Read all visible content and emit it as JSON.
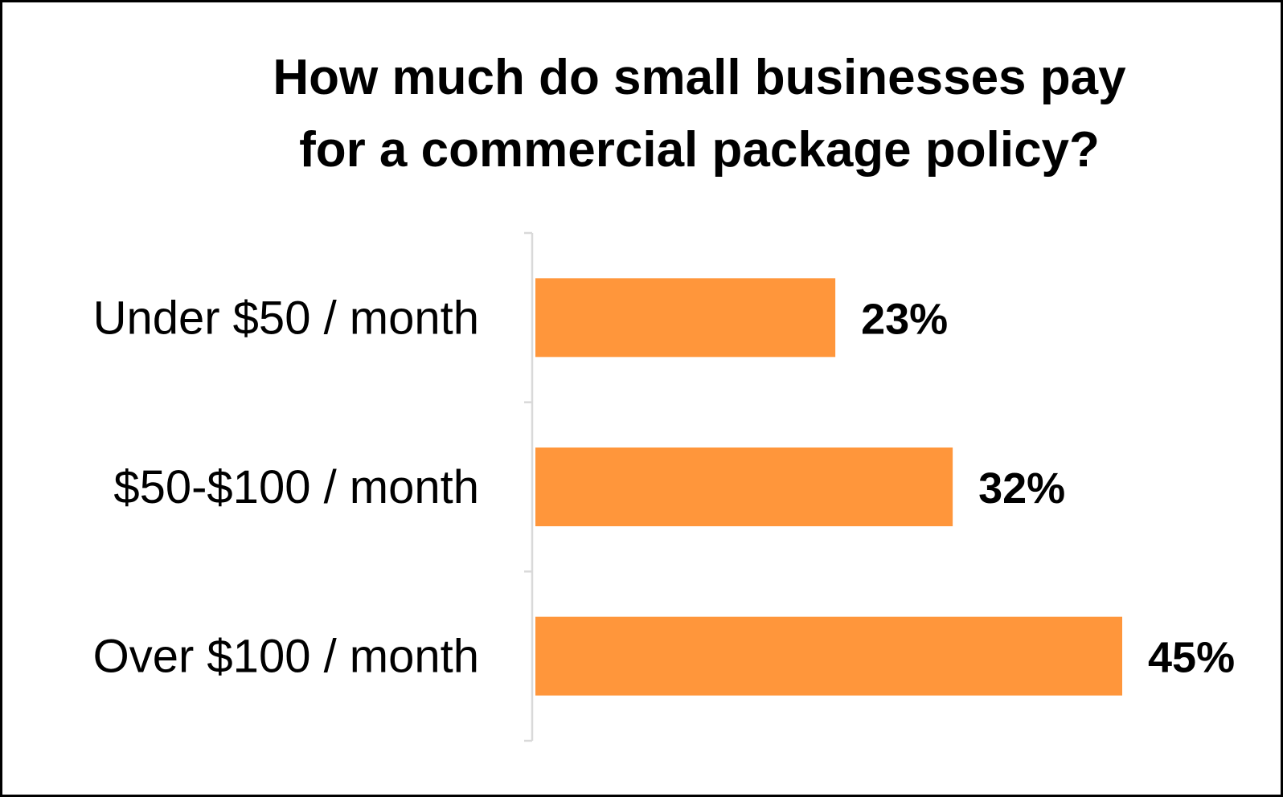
{
  "chart_data": {
    "type": "bar",
    "orientation": "horizontal",
    "title_lines": [
      "How much do small businesses pay",
      "for a commercial package policy?"
    ],
    "categories": [
      "Under $50 / month",
      "$50-$100 / month",
      "Over $100 / month"
    ],
    "values": [
      23,
      32,
      45
    ],
    "value_labels": [
      "23%",
      "32%",
      "45%"
    ],
    "unit": "%",
    "xlabel": "",
    "ylabel": "",
    "xlim": [
      0,
      45
    ],
    "grid": false,
    "legend": "none",
    "bar_color": "#FF963B"
  }
}
